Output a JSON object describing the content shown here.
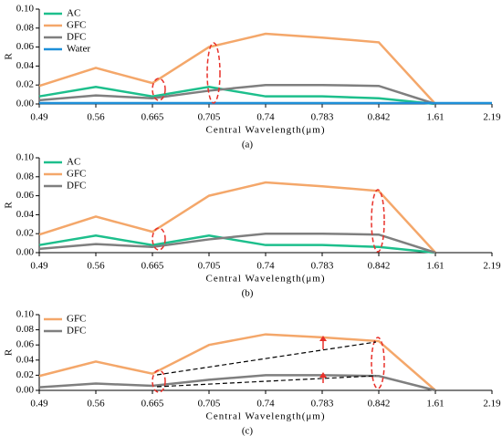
{
  "chart_data": [
    {
      "type": "line",
      "caption": "(a)",
      "xlabel": "Central Wavelength(μm)",
      "ylabel": "R",
      "categories": [
        "0.49",
        "0.56",
        "0.665",
        "0.705",
        "0.74",
        "0.783",
        "0.842",
        "1.61",
        "2.19"
      ],
      "ylim": [
        0,
        0.1
      ],
      "yticks": [
        {
          "value": 0,
          "label": "0.00"
        },
        {
          "value": 0.02,
          "label": "0.02"
        },
        {
          "value": 0.04,
          "label": "0.04"
        },
        {
          "value": 0.06,
          "label": "0.06"
        },
        {
          "value": 0.08,
          "label": "0.08"
        },
        {
          "value": 0.1,
          "label": "0.10"
        }
      ],
      "legend": "upper left",
      "series": [
        {
          "name": "AC",
          "color": "#1dbf8c",
          "values": [
            0.008,
            0.018,
            0.008,
            0.018,
            0.008,
            0.008,
            0.006,
            0.0,
            null
          ]
        },
        {
          "name": "GFC",
          "color": "#f4a76a",
          "values": [
            0.019,
            0.038,
            0.022,
            0.06,
            0.074,
            0.07,
            0.065,
            0.0,
            null
          ]
        },
        {
          "name": "DFC",
          "color": "#7f7f7f",
          "values": [
            0.004,
            0.009,
            0.006,
            0.014,
            0.02,
            0.02,
            0.019,
            0.0,
            null
          ]
        },
        {
          "name": "Water",
          "color": "#1e8fd8",
          "values": [
            0.001,
            0.001,
            0.001,
            0.001,
            0.001,
            0.001,
            0.001,
            0.001,
            0.001
          ]
        }
      ]
    },
    {
      "type": "line",
      "caption": "(b)",
      "xlabel": "Central Wavelength(μm)",
      "ylabel": "R",
      "categories": [
        "0.49",
        "0.56",
        "0.665",
        "0.705",
        "0.74",
        "0.783",
        "0.842",
        "1.61",
        "2.19"
      ],
      "ylim": [
        0,
        0.1
      ],
      "yticks": [
        {
          "value": 0,
          "label": "0.00"
        },
        {
          "value": 0.02,
          "label": "0.02"
        },
        {
          "value": 0.04,
          "label": "0.04"
        },
        {
          "value": 0.06,
          "label": "0.06"
        },
        {
          "value": 0.08,
          "label": "0.08"
        },
        {
          "value": 0.1,
          "label": "0.10"
        }
      ],
      "legend": "upper left",
      "series": [
        {
          "name": "AC",
          "color": "#1dbf8c",
          "values": [
            0.008,
            0.018,
            0.008,
            0.018,
            0.008,
            0.008,
            0.006,
            0.0,
            null
          ]
        },
        {
          "name": "GFC",
          "color": "#f4a76a",
          "values": [
            0.019,
            0.038,
            0.022,
            0.06,
            0.074,
            0.07,
            0.065,
            0.0,
            null
          ]
        },
        {
          "name": "DFC",
          "color": "#7f7f7f",
          "values": [
            0.004,
            0.009,
            0.006,
            0.014,
            0.02,
            0.02,
            0.019,
            0.0,
            null
          ]
        }
      ]
    },
    {
      "type": "line",
      "caption": "(c)",
      "xlabel": "Central Wavelength(μm)",
      "ylabel": "R",
      "categories": [
        "0.49",
        "0.56",
        "0.665",
        "0.705",
        "0.74",
        "0.783",
        "0.842",
        "1.61",
        "2.19"
      ],
      "ylim": [
        0,
        0.1
      ],
      "yticks": [
        {
          "value": 0,
          "label": "0.00"
        },
        {
          "value": 0.02,
          "label": "0.02"
        },
        {
          "value": 0.04,
          "label": "0.04"
        },
        {
          "value": 0.06,
          "label": "0.06"
        },
        {
          "value": 0.08,
          "label": "0.08"
        },
        {
          "value": 0.1,
          "label": "0.10"
        }
      ],
      "legend": "upper left",
      "series": [
        {
          "name": "GFC",
          "color": "#f4a76a",
          "values": [
            0.019,
            0.038,
            0.022,
            0.06,
            0.074,
            0.07,
            0.065,
            0.0,
            null
          ]
        },
        {
          "name": "DFC",
          "color": "#7f7f7f",
          "values": [
            0.004,
            0.009,
            0.006,
            0.014,
            0.02,
            0.02,
            0.019,
            0.0,
            null
          ]
        }
      ]
    }
  ]
}
